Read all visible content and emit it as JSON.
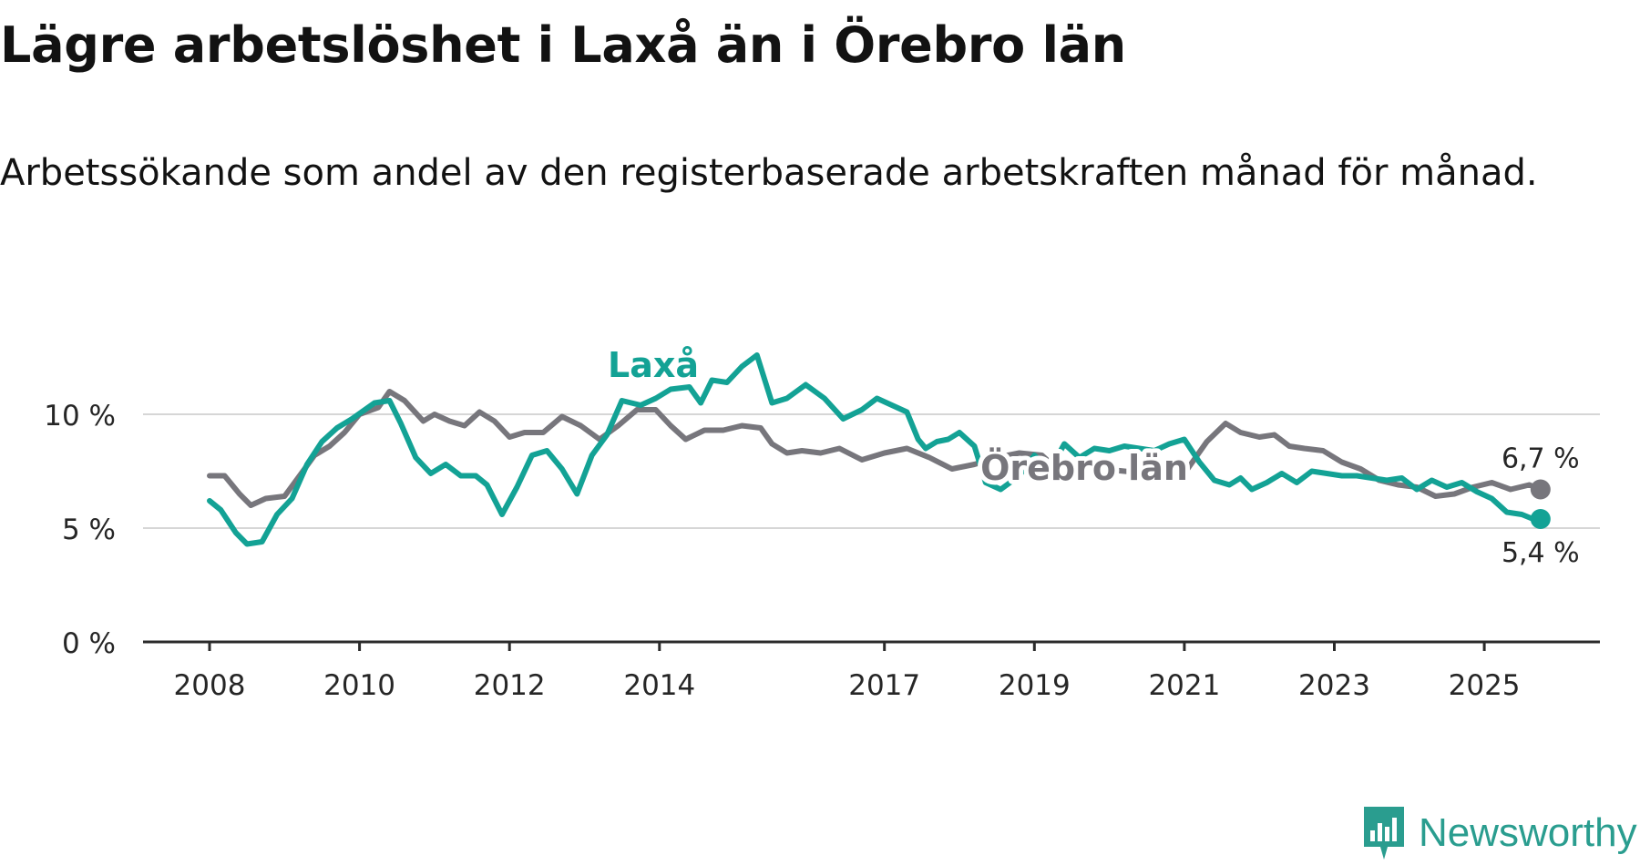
{
  "title": "Lägre arbetslöshet i Laxå än i Örebro län",
  "subtitle": "Arbetssökande som andel av den registerbaserade arbetskraften månad för månad.",
  "brand": {
    "name": "Newsworthy",
    "icon": "chart-bubble-icon"
  },
  "colors": {
    "laxa": "#13a295",
    "orebro": "#77767c",
    "axis": "#2b2b2b",
    "grid": "#d6d6d6",
    "text": "#262626"
  },
  "chart_data": {
    "type": "line",
    "title": "Lägre arbetslöshet i Laxå än i Örebro län",
    "ylim": [
      0,
      12.5
    ],
    "xlim": [
      2008,
      2026
    ],
    "yticks": [
      0,
      5,
      10
    ],
    "ytick_labels": [
      "0 %",
      "5 %",
      "10 %"
    ],
    "xticks": [
      2008,
      2010,
      2012,
      2014,
      2017,
      2019,
      2021,
      2023,
      2025
    ],
    "xtick_labels": [
      "2008",
      "2010",
      "2012",
      "2014",
      "2017",
      "2019",
      "2021",
      "2023",
      "2025"
    ],
    "series": [
      {
        "name": "Örebro län",
        "label": "Örebro län",
        "end_label": "6,7 %",
        "points": [
          [
            2008.0,
            7.3
          ],
          [
            2008.2,
            7.3
          ],
          [
            2008.4,
            6.5
          ],
          [
            2008.55,
            6.0
          ],
          [
            2008.75,
            6.3
          ],
          [
            2009.0,
            6.4
          ],
          [
            2009.2,
            7.3
          ],
          [
            2009.4,
            8.2
          ],
          [
            2009.6,
            8.6
          ],
          [
            2009.8,
            9.2
          ],
          [
            2010.0,
            10.0
          ],
          [
            2010.25,
            10.3
          ],
          [
            2010.4,
            11.0
          ],
          [
            2010.6,
            10.6
          ],
          [
            2010.85,
            9.7
          ],
          [
            2011.0,
            10.0
          ],
          [
            2011.2,
            9.7
          ],
          [
            2011.4,
            9.5
          ],
          [
            2011.6,
            10.1
          ],
          [
            2011.8,
            9.7
          ],
          [
            2012.0,
            9.0
          ],
          [
            2012.2,
            9.2
          ],
          [
            2012.45,
            9.2
          ],
          [
            2012.7,
            9.9
          ],
          [
            2012.95,
            9.5
          ],
          [
            2013.2,
            8.9
          ],
          [
            2013.45,
            9.5
          ],
          [
            2013.7,
            10.2
          ],
          [
            2013.95,
            10.2
          ],
          [
            2014.15,
            9.5
          ],
          [
            2014.35,
            8.9
          ],
          [
            2014.6,
            9.3
          ],
          [
            2014.85,
            9.3
          ],
          [
            2015.1,
            9.5
          ],
          [
            2015.35,
            9.4
          ],
          [
            2015.5,
            8.7
          ],
          [
            2015.7,
            8.3
          ],
          [
            2015.9,
            8.4
          ],
          [
            2016.15,
            8.3
          ],
          [
            2016.4,
            8.5
          ],
          [
            2016.7,
            8.0
          ],
          [
            2017.0,
            8.3
          ],
          [
            2017.3,
            8.5
          ],
          [
            2017.6,
            8.1
          ],
          [
            2017.9,
            7.6
          ],
          [
            2018.2,
            7.8
          ],
          [
            2018.5,
            8.1
          ],
          [
            2018.8,
            8.3
          ],
          [
            2019.1,
            8.2
          ],
          [
            2019.3,
            7.6
          ],
          [
            2019.6,
            7.8
          ],
          [
            2019.9,
            7.6
          ],
          [
            2020.2,
            7.5
          ],
          [
            2020.5,
            7.4
          ],
          [
            2020.8,
            7.5
          ],
          [
            2021.0,
            7.4
          ],
          [
            2021.3,
            8.8
          ],
          [
            2021.55,
            9.6
          ],
          [
            2021.75,
            9.2
          ],
          [
            2022.0,
            9.0
          ],
          [
            2022.2,
            9.1
          ],
          [
            2022.4,
            8.6
          ],
          [
            2022.6,
            8.5
          ],
          [
            2022.85,
            8.4
          ],
          [
            2023.1,
            7.9
          ],
          [
            2023.35,
            7.6
          ],
          [
            2023.6,
            7.1
          ],
          [
            2023.85,
            6.9
          ],
          [
            2024.1,
            6.8
          ],
          [
            2024.35,
            6.4
          ],
          [
            2024.6,
            6.5
          ],
          [
            2024.85,
            6.8
          ],
          [
            2025.1,
            7.0
          ],
          [
            2025.35,
            6.7
          ],
          [
            2025.6,
            6.9
          ],
          [
            2025.75,
            6.7
          ]
        ]
      },
      {
        "name": "Laxå",
        "label": "Laxå",
        "end_label": "5,4 %",
        "points": [
          [
            2008.0,
            6.2
          ],
          [
            2008.15,
            5.8
          ],
          [
            2008.35,
            4.8
          ],
          [
            2008.5,
            4.3
          ],
          [
            2008.7,
            4.4
          ],
          [
            2008.9,
            5.6
          ],
          [
            2009.1,
            6.3
          ],
          [
            2009.3,
            7.8
          ],
          [
            2009.5,
            8.8
          ],
          [
            2009.7,
            9.4
          ],
          [
            2009.9,
            9.8
          ],
          [
            2010.2,
            10.5
          ],
          [
            2010.4,
            10.6
          ],
          [
            2010.55,
            9.6
          ],
          [
            2010.75,
            8.1
          ],
          [
            2010.95,
            7.4
          ],
          [
            2011.15,
            7.8
          ],
          [
            2011.35,
            7.3
          ],
          [
            2011.55,
            7.3
          ],
          [
            2011.7,
            6.9
          ],
          [
            2011.9,
            5.6
          ],
          [
            2012.1,
            6.8
          ],
          [
            2012.3,
            8.2
          ],
          [
            2012.5,
            8.4
          ],
          [
            2012.7,
            7.6
          ],
          [
            2012.9,
            6.5
          ],
          [
            2013.1,
            8.2
          ],
          [
            2013.3,
            9.1
          ],
          [
            2013.5,
            10.6
          ],
          [
            2013.75,
            10.4
          ],
          [
            2013.95,
            10.7
          ],
          [
            2014.15,
            11.1
          ],
          [
            2014.4,
            11.2
          ],
          [
            2014.55,
            10.5
          ],
          [
            2014.7,
            11.5
          ],
          [
            2014.9,
            11.4
          ],
          [
            2015.1,
            12.1
          ],
          [
            2015.3,
            12.6
          ],
          [
            2015.5,
            10.5
          ],
          [
            2015.7,
            10.7
          ],
          [
            2015.95,
            11.3
          ],
          [
            2016.2,
            10.7
          ],
          [
            2016.45,
            9.8
          ],
          [
            2016.7,
            10.2
          ],
          [
            2016.9,
            10.7
          ],
          [
            2017.1,
            10.4
          ],
          [
            2017.3,
            10.1
          ],
          [
            2017.45,
            8.9
          ],
          [
            2017.55,
            8.5
          ],
          [
            2017.7,
            8.8
          ],
          [
            2017.85,
            8.9
          ],
          [
            2018.0,
            9.2
          ],
          [
            2018.2,
            8.6
          ],
          [
            2018.35,
            7.0
          ],
          [
            2018.55,
            6.7
          ],
          [
            2018.8,
            7.3
          ],
          [
            2019.0,
            8.2
          ],
          [
            2019.2,
            7.5
          ],
          [
            2019.4,
            8.7
          ],
          [
            2019.6,
            8.1
          ],
          [
            2019.8,
            8.5
          ],
          [
            2020.0,
            8.4
          ],
          [
            2020.2,
            8.6
          ],
          [
            2020.4,
            8.5
          ],
          [
            2020.6,
            8.4
          ],
          [
            2020.8,
            8.7
          ],
          [
            2021.0,
            8.9
          ],
          [
            2021.2,
            7.9
          ],
          [
            2021.4,
            7.1
          ],
          [
            2021.6,
            6.9
          ],
          [
            2021.75,
            7.2
          ],
          [
            2021.9,
            6.7
          ],
          [
            2022.1,
            7.0
          ],
          [
            2022.3,
            7.4
          ],
          [
            2022.5,
            7.0
          ],
          [
            2022.7,
            7.5
          ],
          [
            2022.9,
            7.4
          ],
          [
            2023.1,
            7.3
          ],
          [
            2023.3,
            7.3
          ],
          [
            2023.5,
            7.2
          ],
          [
            2023.7,
            7.1
          ],
          [
            2023.9,
            7.2
          ],
          [
            2024.1,
            6.7
          ],
          [
            2024.3,
            7.1
          ],
          [
            2024.5,
            6.8
          ],
          [
            2024.7,
            7.0
          ],
          [
            2024.9,
            6.6
          ],
          [
            2025.1,
            6.3
          ],
          [
            2025.3,
            5.7
          ],
          [
            2025.5,
            5.6
          ],
          [
            2025.65,
            5.4
          ],
          [
            2025.75,
            5.4
          ]
        ]
      }
    ]
  }
}
